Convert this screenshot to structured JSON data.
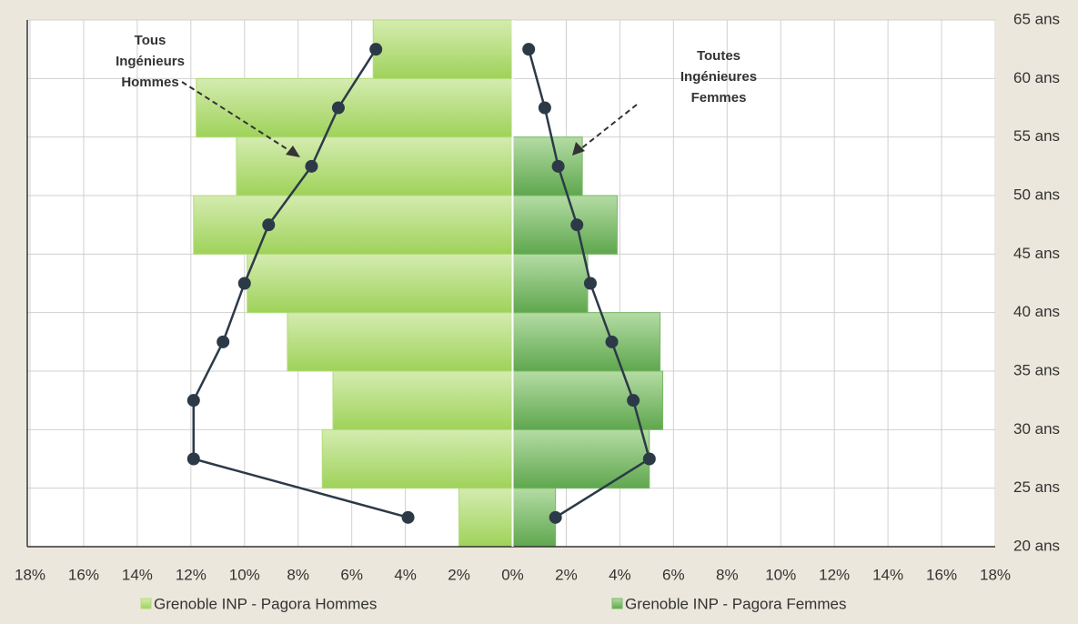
{
  "chart_data": {
    "type": "pyramid",
    "xlim": [
      -18,
      18
    ],
    "xticks": [
      {
        "value": -18,
        "label": "18%"
      },
      {
        "value": -16,
        "label": "16%"
      },
      {
        "value": -14,
        "label": "14%"
      },
      {
        "value": -12,
        "label": "12%"
      },
      {
        "value": -10,
        "label": "10%"
      },
      {
        "value": -8,
        "label": "8%"
      },
      {
        "value": -6,
        "label": "6%"
      },
      {
        "value": -4,
        "label": "4%"
      },
      {
        "value": -2,
        "label": "2%"
      },
      {
        "value": 0,
        "label": "0%"
      },
      {
        "value": 2,
        "label": "2%"
      },
      {
        "value": 4,
        "label": "4%"
      },
      {
        "value": 6,
        "label": "6%"
      },
      {
        "value": 8,
        "label": "8%"
      },
      {
        "value": 10,
        "label": "10%"
      },
      {
        "value": 12,
        "label": "12%"
      },
      {
        "value": 14,
        "label": "14%"
      },
      {
        "value": 16,
        "label": "16%"
      },
      {
        "value": 18,
        "label": "18%"
      }
    ],
    "ylim": [
      20,
      65
    ],
    "yticks": [
      {
        "value": 20,
        "label": "20 ans"
      },
      {
        "value": 25,
        "label": "25 ans"
      },
      {
        "value": 30,
        "label": "30 ans"
      },
      {
        "value": 35,
        "label": "35 ans"
      },
      {
        "value": 40,
        "label": "40 ans"
      },
      {
        "value": 45,
        "label": "45 ans"
      },
      {
        "value": 50,
        "label": "50 ans"
      },
      {
        "value": 55,
        "label": "55 ans"
      },
      {
        "value": 60,
        "label": "60 ans"
      },
      {
        "value": 65,
        "label": "65 ans"
      }
    ],
    "y_bins": [
      20,
      25,
      30,
      35,
      40,
      45,
      50,
      55,
      60,
      65
    ],
    "grid": true,
    "series": [
      {
        "name": "Grenoble INP - Pagora Hommes",
        "color": "#b2dc78",
        "values": [
          -2.0,
          -7.1,
          -6.7,
          -8.4,
          -9.9,
          -11.9,
          -10.3,
          -11.8,
          -5.2
        ]
      },
      {
        "name": "Grenoble INP - Pagora Femmes",
        "color": "#78b865",
        "values": [
          1.6,
          5.1,
          5.6,
          5.5,
          2.8,
          3.9,
          2.6,
          0,
          0
        ]
      }
    ],
    "lines": [
      {
        "color": "#2c3a48",
        "values": [
          -3.9,
          -11.9,
          -11.9,
          -10.8,
          -10.0,
          -9.1,
          -7.5,
          -6.5,
          -5.1
        ]
      },
      {
        "color": "#2c3a48",
        "values": [
          1.6,
          5.1,
          4.5,
          3.7,
          2.9,
          2.4,
          1.7,
          1.2,
          0.6
        ]
      }
    ],
    "annotations": [
      [
        "Tous",
        "Ingénieurs",
        "Hommes"
      ],
      [
        "Toutes",
        "Ingénieures",
        "Femmes"
      ]
    ]
  }
}
